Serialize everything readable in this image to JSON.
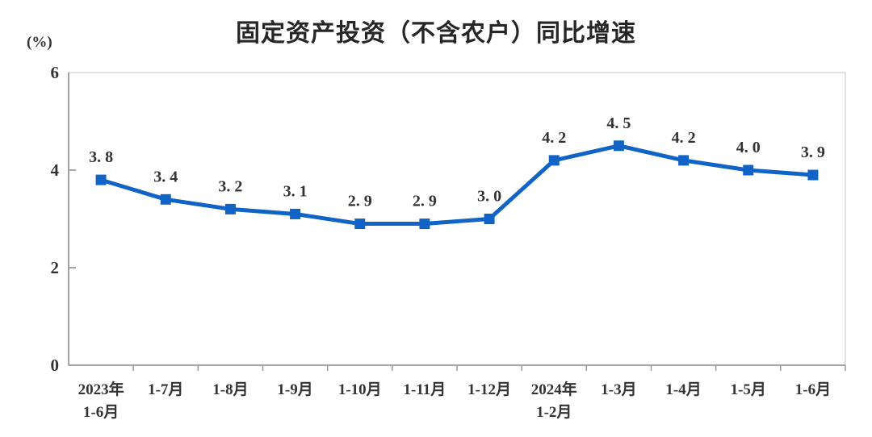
{
  "chart_data": {
    "type": "line",
    "title": "固定资产投资（不含农户）同比增速",
    "unit": "(%)",
    "xlabel": "",
    "ylabel": "(%)",
    "categories": [
      [
        "2023年",
        "1-6月"
      ],
      [
        "1-7月"
      ],
      [
        "1-8月"
      ],
      [
        "1-9月"
      ],
      [
        "1-10月"
      ],
      [
        "1-11月"
      ],
      [
        "1-12月"
      ],
      [
        "2024年",
        "1-2月"
      ],
      [
        "1-3月"
      ],
      [
        "1-4月"
      ],
      [
        "1-5月"
      ],
      [
        "1-6月"
      ]
    ],
    "values": [
      3.8,
      3.4,
      3.2,
      3.1,
      2.9,
      2.9,
      3.0,
      4.2,
      4.5,
      4.2,
      4.0,
      3.9
    ],
    "point_labels": [
      "3. 8",
      "3. 4",
      "3. 2",
      "3. 1",
      "2. 9",
      "2. 9",
      "3. 0",
      "4. 2",
      "4. 5",
      "4. 2",
      "4. 0",
      "3. 9"
    ],
    "ylim": [
      0,
      6
    ],
    "yticks": [
      0,
      2,
      4,
      6
    ],
    "grid": false,
    "legend": "none",
    "marker": "square",
    "colors": {
      "line": "#1164c5",
      "marker": "#1164c5",
      "text": "#333333",
      "title": "#262626",
      "axis": "#9a9a9a",
      "border": "#d9d9d9",
      "background": "#ffffff"
    }
  }
}
